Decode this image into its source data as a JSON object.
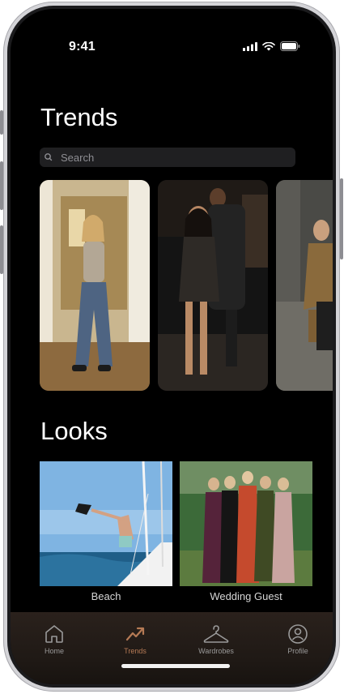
{
  "status_bar": {
    "time": "9:41"
  },
  "trends": {
    "title": "Trends",
    "search_placeholder": "Search",
    "cards": [
      {
        "name": "trend-photo-doorway"
      },
      {
        "name": "trend-photo-street-night"
      },
      {
        "name": "trend-photo-street-day"
      }
    ]
  },
  "looks": {
    "title": "Looks",
    "cards": [
      {
        "label": "Beach"
      },
      {
        "label": "Wedding Guest"
      }
    ]
  },
  "tab_bar": {
    "active": "Trends",
    "items": [
      {
        "label": "Home",
        "icon": "house-icon"
      },
      {
        "label": "Trends",
        "icon": "trend-arrow-icon"
      },
      {
        "label": "Wardrobes",
        "icon": "hanger-icon"
      },
      {
        "label": "Profile",
        "icon": "person-circle-icon"
      }
    ]
  },
  "colors": {
    "accent": "#b57a55",
    "background": "#000000",
    "search_bg": "#1f1f21"
  }
}
